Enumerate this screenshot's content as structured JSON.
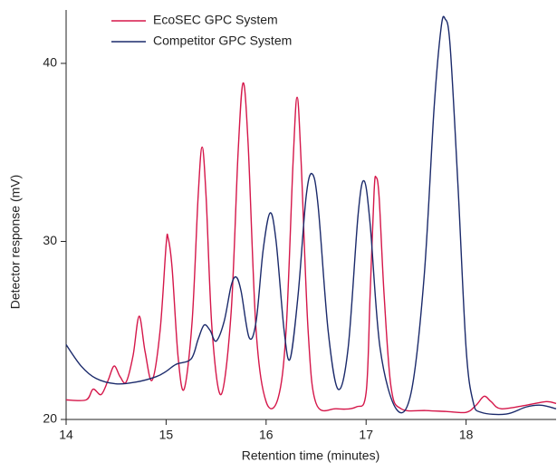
{
  "chart_data": {
    "type": "line",
    "xlabel": "Retention time (minutes)",
    "ylabel": "Detector response (mV)",
    "xlim": [
      14,
      18.9
    ],
    "ylim": [
      20,
      43
    ],
    "xticks": [
      14,
      15,
      16,
      17,
      18
    ],
    "yticks": [
      20,
      30,
      40
    ],
    "legend": "upper left",
    "series": [
      {
        "name": "EcoSEC GPC System",
        "color": "#d5174a",
        "x": [
          14.0,
          14.2,
          14.27,
          14.35,
          14.42,
          14.48,
          14.54,
          14.6,
          14.67,
          14.73,
          14.79,
          14.86,
          14.94,
          15.0,
          15.02,
          15.06,
          15.12,
          15.18,
          15.26,
          15.32,
          15.36,
          15.4,
          15.46,
          15.55,
          15.65,
          15.72,
          15.77,
          15.82,
          15.9,
          16.0,
          16.12,
          16.2,
          16.27,
          16.31,
          16.35,
          16.42,
          16.5,
          16.7,
          16.9,
          17.0,
          17.04,
          17.08,
          17.1,
          17.13,
          17.18,
          17.25,
          17.35,
          17.6,
          17.8,
          18.0,
          18.1,
          18.18,
          18.25,
          18.35,
          18.6,
          18.8,
          18.9
        ],
        "values": [
          21.1,
          21.1,
          21.7,
          21.4,
          22.2,
          23.0,
          22.4,
          22.1,
          23.6,
          25.8,
          23.8,
          22.2,
          25.0,
          29.8,
          30.2,
          28.5,
          23.5,
          21.7,
          25.5,
          32.5,
          35.3,
          32.5,
          25.0,
          21.4,
          26.0,
          35.0,
          38.9,
          35.5,
          25.0,
          21.0,
          21.2,
          25.0,
          34.5,
          38.1,
          34.5,
          25.0,
          20.9,
          20.6,
          20.7,
          21.5,
          27.0,
          32.8,
          33.6,
          32.5,
          27.0,
          21.8,
          20.6,
          20.5,
          20.45,
          20.4,
          20.8,
          21.3,
          21.0,
          20.6,
          20.8,
          21.0,
          20.9
        ]
      },
      {
        "name": "Competitor GPC System",
        "color": "#1b2a6b",
        "x": [
          14.0,
          14.15,
          14.3,
          14.5,
          14.7,
          14.9,
          15.0,
          15.1,
          15.25,
          15.32,
          15.38,
          15.44,
          15.5,
          15.58,
          15.65,
          15.7,
          15.75,
          15.83,
          15.9,
          15.97,
          16.04,
          16.1,
          16.18,
          16.24,
          16.32,
          16.4,
          16.46,
          16.52,
          16.62,
          16.72,
          16.82,
          16.92,
          16.98,
          17.04,
          17.14,
          17.3,
          17.45,
          17.58,
          17.68,
          17.75,
          17.79,
          17.84,
          17.92,
          18.0,
          18.07,
          18.15,
          18.4,
          18.6,
          18.75,
          18.9
        ],
        "values": [
          24.2,
          23.0,
          22.3,
          22.0,
          22.1,
          22.4,
          22.7,
          23.1,
          23.4,
          24.5,
          25.3,
          25.0,
          24.4,
          25.5,
          27.5,
          28.0,
          27.2,
          24.6,
          25.5,
          29.5,
          31.6,
          30.0,
          25.0,
          23.4,
          27.0,
          32.5,
          33.8,
          32.0,
          25.0,
          21.7,
          24.0,
          31.5,
          33.4,
          31.0,
          24.0,
          20.6,
          21.5,
          28.0,
          37.5,
          42.0,
          42.5,
          41.0,
          33.0,
          24.0,
          21.0,
          20.4,
          20.3,
          20.7,
          20.8,
          20.6
        ]
      }
    ]
  }
}
